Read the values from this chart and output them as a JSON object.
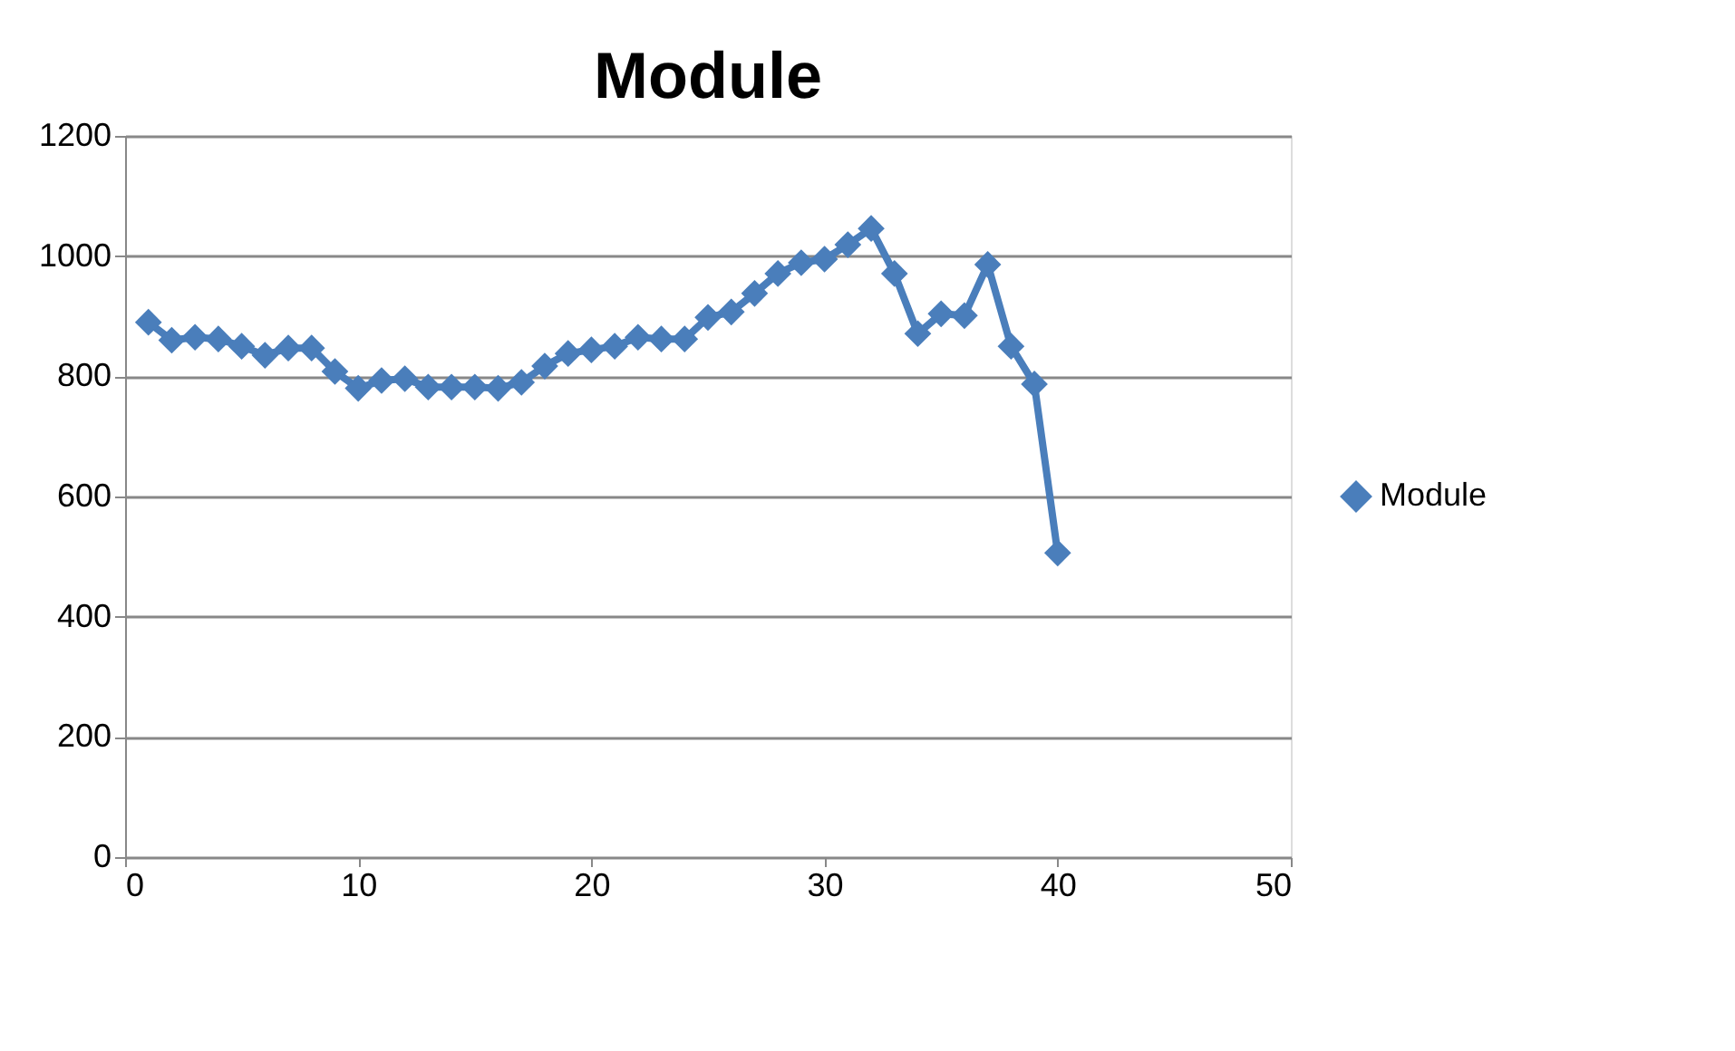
{
  "chart_data": {
    "type": "line",
    "title": "Module",
    "x": [
      1,
      2,
      3,
      4,
      5,
      6,
      7,
      8,
      9,
      10,
      11,
      12,
      13,
      14,
      15,
      16,
      17,
      18,
      19,
      20,
      21,
      22,
      23,
      24,
      25,
      26,
      27,
      28,
      29,
      30,
      31,
      32,
      33,
      34,
      35,
      36,
      37,
      38,
      39,
      40
    ],
    "series": [
      {
        "name": "Module",
        "color": "#4a7ebb",
        "values": [
          890,
          860,
          865,
          862,
          850,
          835,
          847,
          847,
          808,
          780,
          793,
          796,
          782,
          782,
          782,
          780,
          790,
          817,
          838,
          844,
          850,
          865,
          862,
          862,
          898,
          907,
          938,
          971,
          989,
          995,
          1019,
          1046,
          971,
          871,
          904,
          901,
          986,
          850,
          787,
          506
        ]
      }
    ],
    "xlim": [
      0,
      50
    ],
    "xticks": [
      0,
      10,
      20,
      30,
      40,
      50
    ],
    "ylim": [
      0,
      1200
    ],
    "yticks": [
      0,
      200,
      400,
      600,
      800,
      1000,
      1200
    ],
    "grid": "y",
    "legend": "right",
    "marker": "diamond",
    "line_style": "solid"
  }
}
